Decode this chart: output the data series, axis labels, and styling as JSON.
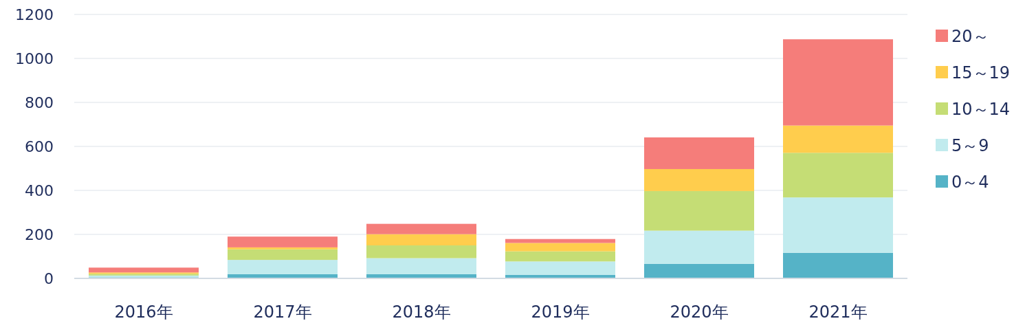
{
  "chart_data": {
    "type": "bar",
    "stacked": true,
    "categories": [
      "2016年",
      "2017年",
      "2018年",
      "2019年",
      "2020年",
      "2021年"
    ],
    "series": [
      {
        "name": "0～4",
        "color": "#55b3c7",
        "values": [
          5,
          19,
          19,
          16,
          66,
          116
        ]
      },
      {
        "name": "5～9",
        "color": "#c1ebee",
        "values": [
          8,
          65,
          73,
          61,
          151,
          252
        ]
      },
      {
        "name": "10～14",
        "color": "#c5dd75",
        "values": [
          8,
          48,
          58,
          46,
          180,
          203
        ]
      },
      {
        "name": "15～19",
        "color": "#ffcd4d",
        "values": [
          6,
          9,
          51,
          38,
          100,
          124
        ]
      },
      {
        "name": "20～",
        "color": "#f57d7a",
        "values": [
          22,
          49,
          47,
          18,
          144,
          392
        ]
      }
    ],
    "ylim": [
      0,
      1200
    ],
    "yticks": [
      0,
      200,
      400,
      600,
      800,
      1000,
      1200
    ],
    "grid": "y",
    "legend": "right"
  }
}
